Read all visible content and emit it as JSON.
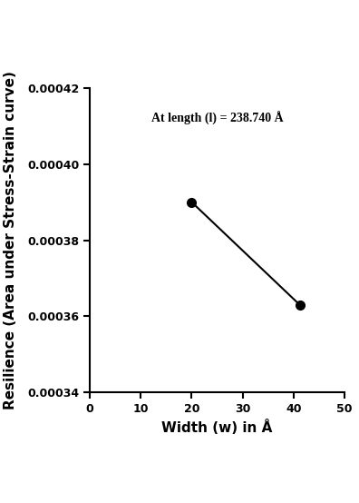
{
  "chart_data": {
    "type": "line",
    "x_label": "Width (w) in Å",
    "y_label": "Resilience (Area under Stress-Strain curve)",
    "annotation": "At length (l) = 238.740 Å",
    "x": [
      20,
      41.2
    ],
    "values": [
      0.00039,
      0.000363
    ],
    "color": "#000000",
    "marker": "circle",
    "line_style": "solid",
    "xlim": [
      0,
      50
    ],
    "xticks": [
      0,
      10,
      20,
      30,
      40,
      50
    ],
    "ylim": [
      0.00034,
      0.00042
    ],
    "yticks": [
      0.00034,
      0.00036,
      0.00038,
      {
        "value": 0.0004,
        "label": "0.00040"
      },
      0.00042
    ],
    "grid": false
  }
}
